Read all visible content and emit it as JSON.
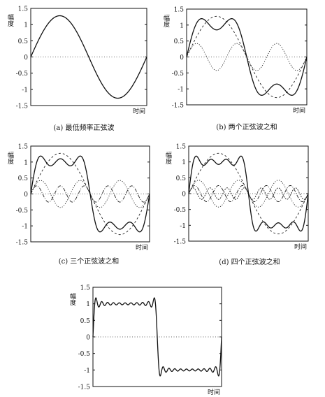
{
  "figure": {
    "captions": [
      "(a) 最低频率正弦波",
      "(b) 两个正弦波之和",
      "(c) 三个正弦波之和",
      "(d) 四个正弦波之和"
    ]
  },
  "chart_data": [
    {
      "type": "line",
      "id": "a",
      "caption": "(a) 最低频率正弦波",
      "ylabel": "幅度",
      "xlabel": "时间",
      "ylim": [
        -1.5,
        1.5
      ],
      "yticks": [
        "1.5",
        "1",
        "0.5",
        "0",
        "-0.5",
        "-1",
        "-1.5"
      ],
      "harmonics": [
        1
      ],
      "show_components": false,
      "show_sum": true,
      "zero_line": "dotted"
    },
    {
      "type": "line",
      "id": "b",
      "caption": "(b) 两个正弦波之和",
      "ylabel": "幅度",
      "xlabel": "时间",
      "ylim": [
        -1.5,
        1.5
      ],
      "yticks": [
        "1.5",
        "1",
        "0.5",
        "0",
        "-0.5",
        "-1",
        "-1.5"
      ],
      "harmonics": [
        1,
        3
      ],
      "show_components": true,
      "show_sum": true,
      "zero_line": "dotted"
    },
    {
      "type": "line",
      "id": "c",
      "caption": "(c) 三个正弦波之和",
      "ylabel": "幅度",
      "xlabel": "时间",
      "ylim": [
        -1.5,
        1.5
      ],
      "yticks": [
        "1.5",
        "1",
        "0.5",
        "0",
        "-0.5",
        "-1",
        "-1.5"
      ],
      "harmonics": [
        1,
        3,
        5
      ],
      "show_components": true,
      "show_sum": true,
      "zero_line": "dotted"
    },
    {
      "type": "line",
      "id": "d",
      "caption": "(d) 四个正弦波之和",
      "ylabel": "幅度",
      "xlabel": "时间",
      "ylim": [
        -1.5,
        1.5
      ],
      "yticks": [
        "1.5",
        "1",
        "0.5",
        "0",
        "-0.5",
        "-1",
        "-1.5"
      ],
      "harmonics": [
        1,
        3,
        5,
        7
      ],
      "show_components": true,
      "show_sum": true,
      "zero_line": "dotted"
    },
    {
      "type": "line",
      "id": "e",
      "ylabel": "幅度",
      "xlabel": "时间",
      "ylim": [
        -1.5,
        1.5
      ],
      "yticks": [
        "1.5",
        "1",
        "0.5",
        "0",
        "-0.5",
        "-1",
        "-1.5"
      ],
      "harmonics": [
        1,
        3,
        5,
        7,
        9,
        11,
        13,
        15,
        17,
        19,
        21
      ],
      "show_components": false,
      "show_sum": true,
      "zero_line": "dotted"
    }
  ]
}
